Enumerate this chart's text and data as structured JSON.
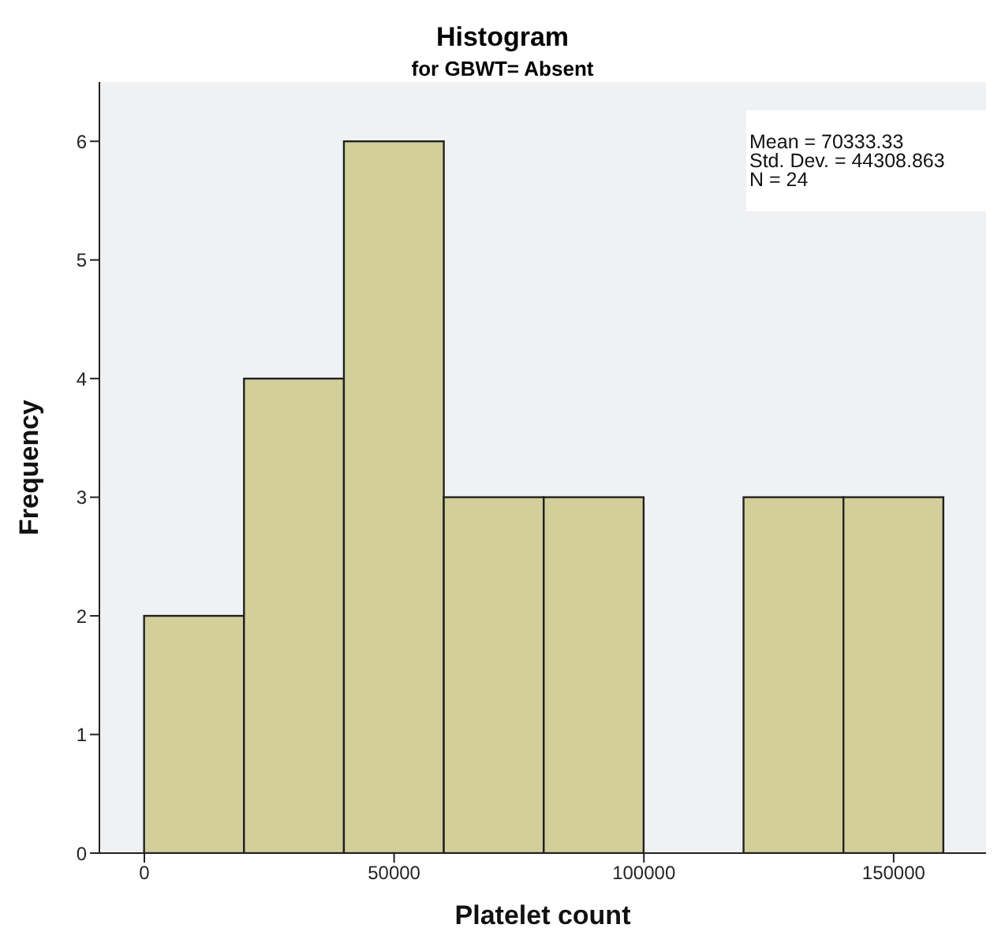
{
  "chart_data": {
    "type": "histogram",
    "title": "Histogram",
    "subtitle": "for GBWT= Absent",
    "xlabel": "Platelet count",
    "ylabel": "Frequency",
    "bins": [
      0,
      20000,
      40000,
      60000,
      80000,
      100000,
      120000,
      140000,
      160000
    ],
    "values": [
      2,
      4,
      6,
      3,
      3,
      0,
      3,
      3
    ],
    "color": "#d3cf9b",
    "xlim": [
      -9000,
      168500
    ],
    "xticks": [
      0,
      50000,
      100000,
      150000
    ],
    "ylim": [
      0,
      6.5
    ],
    "yticks": [
      0,
      1,
      2,
      3,
      4,
      5,
      6
    ],
    "annotations": [
      "Mean = 70333.33",
      "Std. Dev. = 44308.863",
      "N = 24"
    ]
  }
}
